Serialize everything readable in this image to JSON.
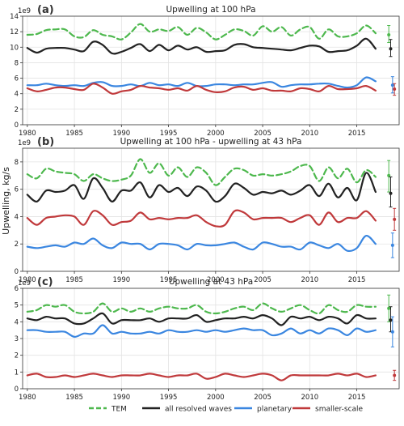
{
  "figure": {
    "ylabel": "Upwelling, kg/s",
    "legend_position": "bottom",
    "legend": [
      {
        "label": "TEM",
        "color": "#4db84d",
        "dash": true
      },
      {
        "label": "all resolved waves",
        "color": "#222222",
        "dash": false
      },
      {
        "label": "planetary",
        "color": "#3a86e0",
        "dash": false
      },
      {
        "label": "smaller-scale",
        "color": "#c0393b",
        "dash": false
      }
    ]
  },
  "chart_data": [
    {
      "type": "line",
      "panel_label": "(a)",
      "title": "Upwelling at 100 hPa",
      "scale_label": "1e9",
      "xlim": [
        1979.5,
        2019.5
      ],
      "ylim": [
        0,
        14
      ],
      "yticks": [
        0,
        2,
        4,
        6,
        8,
        10,
        12,
        14
      ],
      "xticks": [
        1980,
        1985,
        1990,
        1995,
        2000,
        2005,
        2010,
        2015
      ],
      "grid": true,
      "x": [
        1980,
        1981,
        1982,
        1983,
        1984,
        1985,
        1986,
        1987,
        1988,
        1989,
        1990,
        1991,
        1992,
        1993,
        1994,
        1995,
        1996,
        1997,
        1998,
        1999,
        2000,
        2001,
        2002,
        2003,
        2004,
        2005,
        2006,
        2007,
        2008,
        2009,
        2010,
        2011,
        2012,
        2013,
        2014,
        2015,
        2016,
        2017
      ],
      "series": [
        {
          "name": "TEM",
          "color": "#4db84d",
          "dash": true,
          "values": [
            11.6,
            11.7,
            12.2,
            12.3,
            12.3,
            11.4,
            11.3,
            12.2,
            11.6,
            11.4,
            11.0,
            11.9,
            13.0,
            12.0,
            12.3,
            12.1,
            12.6,
            11.6,
            12.5,
            11.9,
            11.0,
            11.6,
            12.3,
            12.1,
            11.5,
            12.7,
            12.0,
            12.6,
            11.5,
            12.3,
            12.6,
            11.1,
            12.3,
            11.4,
            11.4,
            11.8,
            12.8,
            11.8
          ],
          "errorbar": {
            "x": 2018.4,
            "value": 11.6,
            "low": 10.6,
            "high": 12.8
          }
        },
        {
          "name": "all resolved waves",
          "color": "#222222",
          "dash": false,
          "values": [
            9.9,
            9.3,
            9.8,
            9.9,
            9.9,
            9.7,
            9.5,
            10.7,
            10.3,
            9.2,
            9.4,
            9.9,
            10.4,
            9.5,
            10.3,
            9.6,
            10.2,
            9.7,
            10.0,
            9.4,
            9.5,
            9.6,
            10.3,
            10.4,
            10.0,
            9.9,
            9.8,
            9.7,
            9.6,
            9.9,
            10.2,
            10.1,
            9.4,
            9.5,
            9.6,
            10.2,
            11.1,
            9.8
          ],
          "errorbar": {
            "x": 2018.6,
            "value": 9.8,
            "low": 8.8,
            "high": 11.0
          }
        },
        {
          "name": "planetary",
          "color": "#3a86e0",
          "dash": false,
          "values": [
            5.1,
            5.1,
            5.3,
            5.1,
            5.0,
            5.1,
            5.0,
            5.4,
            5.5,
            5.0,
            5.0,
            5.2,
            5.0,
            5.4,
            5.1,
            5.2,
            5.0,
            5.4,
            5.0,
            5.0,
            5.2,
            5.2,
            5.1,
            5.2,
            5.2,
            5.4,
            5.5,
            4.9,
            5.1,
            5.2,
            5.2,
            5.3,
            5.3,
            5.0,
            4.8,
            5.1,
            6.1,
            5.6
          ],
          "errorbar": {
            "x": 2018.8,
            "value": 5.1,
            "low": 4.1,
            "high": 6.2
          }
        },
        {
          "name": "smaller-scale",
          "color": "#c0393b",
          "dash": false,
          "values": [
            4.7,
            4.3,
            4.5,
            4.8,
            4.8,
            4.6,
            4.5,
            5.3,
            4.8,
            4.0,
            4.3,
            4.5,
            5.0,
            4.8,
            4.7,
            4.5,
            4.7,
            4.4,
            5.0,
            4.5,
            4.2,
            4.3,
            4.8,
            4.9,
            4.5,
            4.7,
            4.4,
            4.4,
            4.3,
            4.7,
            4.6,
            4.3,
            5.0,
            4.6,
            4.6,
            4.7,
            5.0,
            4.4
          ],
          "errorbar": {
            "x": 2019.0,
            "value": 4.6,
            "low": 3.8,
            "high": 5.3
          }
        }
      ]
    },
    {
      "type": "line",
      "panel_label": "(b)",
      "title": "Upwelling at 100 hPa - upwelling at 43 hPa",
      "scale_label": "1e9",
      "xlim": [
        1979.5,
        2019.5
      ],
      "ylim": [
        0,
        9
      ],
      "yticks": [
        0,
        2,
        4,
        6,
        8
      ],
      "xticks": [
        1980,
        1985,
        1990,
        1995,
        2000,
        2005,
        2010,
        2015
      ],
      "grid": true,
      "x": [
        1980,
        1981,
        1982,
        1983,
        1984,
        1985,
        1986,
        1987,
        1988,
        1989,
        1990,
        1991,
        1992,
        1993,
        1994,
        1995,
        1996,
        1997,
        1998,
        1999,
        2000,
        2001,
        2002,
        2003,
        2004,
        2005,
        2006,
        2007,
        2008,
        2009,
        2010,
        2011,
        2012,
        2013,
        2014,
        2015,
        2016,
        2017
      ],
      "series": [
        {
          "name": "TEM",
          "color": "#4db84d",
          "dash": true,
          "values": [
            7.1,
            6.8,
            7.5,
            7.3,
            7.2,
            7.1,
            6.6,
            7.1,
            6.8,
            6.6,
            6.7,
            7.0,
            8.2,
            7.2,
            7.9,
            7.0,
            7.6,
            6.9,
            7.6,
            7.2,
            6.3,
            6.9,
            7.5,
            7.4,
            7.0,
            7.1,
            7.0,
            7.1,
            7.3,
            7.7,
            7.7,
            6.6,
            7.6,
            6.8,
            7.5,
            6.5,
            7.4,
            6.9
          ],
          "errorbar": {
            "x": 2018.4,
            "value": 7.0,
            "low": 5.8,
            "high": 8.1
          }
        },
        {
          "name": "all resolved waves",
          "color": "#222222",
          "dash": false,
          "values": [
            5.6,
            5.1,
            5.9,
            5.8,
            5.9,
            6.3,
            5.3,
            6.8,
            6.1,
            5.1,
            5.9,
            5.9,
            6.5,
            5.4,
            6.3,
            5.8,
            6.1,
            5.5,
            6.2,
            5.9,
            5.1,
            5.5,
            6.4,
            6.1,
            5.6,
            5.8,
            5.7,
            5.9,
            5.6,
            5.9,
            6.3,
            5.5,
            6.4,
            5.4,
            6.1,
            5.2,
            7.2,
            5.8
          ],
          "errorbar": {
            "x": 2018.6,
            "value": 5.7,
            "low": 4.7,
            "high": 6.9
          }
        },
        {
          "name": "planetary",
          "color": "#3a86e0",
          "dash": false,
          "values": [
            1.8,
            1.7,
            1.8,
            1.9,
            1.8,
            2.1,
            2.0,
            2.4,
            1.9,
            1.7,
            2.1,
            2.0,
            2.0,
            1.6,
            2.0,
            2.0,
            1.9,
            1.6,
            2.0,
            1.9,
            1.9,
            2.0,
            2.1,
            1.8,
            1.6,
            2.1,
            2.0,
            1.8,
            1.8,
            1.6,
            2.1,
            1.9,
            1.7,
            2.0,
            1.5,
            1.7,
            2.6,
            2.0
          ],
          "errorbar": {
            "x": 2018.8,
            "value": 1.9,
            "low": 1.0,
            "high": 2.8
          }
        },
        {
          "name": "smaller-scale",
          "color": "#c0393b",
          "dash": false,
          "values": [
            3.9,
            3.4,
            3.9,
            4.0,
            4.1,
            4.0,
            3.4,
            4.4,
            4.1,
            3.4,
            3.6,
            3.7,
            4.3,
            3.8,
            3.9,
            3.8,
            3.9,
            3.9,
            4.1,
            3.6,
            3.3,
            3.4,
            4.4,
            4.3,
            3.8,
            3.9,
            3.9,
            3.9,
            3.6,
            3.9,
            4.1,
            3.4,
            4.3,
            3.6,
            3.9,
            3.9,
            4.4,
            3.7
          ],
          "errorbar": {
            "x": 2019.0,
            "value": 3.8,
            "low": 3.0,
            "high": 4.6
          }
        }
      ]
    },
    {
      "type": "line",
      "panel_label": "(c)",
      "title": "Upwelling at 43 hPa",
      "scale_label": "1e9",
      "xlim": [
        1979.5,
        2019.5
      ],
      "ylim": [
        0,
        6
      ],
      "yticks": [
        0,
        1,
        2,
        3,
        4,
        5,
        6
      ],
      "xticks": [
        1980,
        1985,
        1990,
        1995,
        2000,
        2005,
        2010,
        2015
      ],
      "grid": true,
      "x": [
        1980,
        1981,
        1982,
        1983,
        1984,
        1985,
        1986,
        1987,
        1988,
        1989,
        1990,
        1991,
        1992,
        1993,
        1994,
        1995,
        1996,
        1997,
        1998,
        1999,
        2000,
        2001,
        2002,
        2003,
        2004,
        2005,
        2006,
        2007,
        2008,
        2009,
        2010,
        2011,
        2012,
        2013,
        2014,
        2015,
        2016,
        2017
      ],
      "series": [
        {
          "name": "TEM",
          "color": "#4db84d",
          "dash": true,
          "values": [
            4.6,
            4.7,
            5.0,
            4.9,
            5.0,
            4.6,
            4.5,
            4.6,
            5.1,
            4.6,
            4.8,
            4.6,
            4.8,
            4.6,
            4.8,
            4.9,
            4.8,
            4.8,
            5.0,
            4.6,
            4.5,
            4.6,
            4.8,
            4.9,
            4.7,
            5.1,
            4.8,
            4.6,
            4.8,
            5.0,
            4.7,
            4.5,
            5.0,
            4.7,
            4.6,
            5.0,
            4.9,
            4.9
          ],
          "errorbar": {
            "x": 2018.4,
            "value": 4.8,
            "low": 4.0,
            "high": 5.6
          }
        },
        {
          "name": "all resolved waves",
          "color": "#222222",
          "dash": false,
          "values": [
            4.2,
            4.1,
            4.3,
            4.2,
            4.2,
            3.9,
            3.9,
            4.2,
            4.5,
            3.9,
            4.1,
            4.1,
            4.1,
            4.2,
            4.0,
            4.2,
            4.2,
            4.2,
            4.4,
            4.0,
            4.1,
            4.2,
            4.2,
            4.3,
            4.2,
            4.4,
            4.2,
            3.8,
            4.3,
            4.2,
            4.3,
            4.1,
            4.3,
            4.2,
            3.9,
            4.4,
            4.2,
            4.2
          ],
          "errorbar": {
            "x": 2018.6,
            "value": 4.1,
            "low": 3.4,
            "high": 4.9
          }
        },
        {
          "name": "planetary",
          "color": "#3a86e0",
          "dash": false,
          "values": [
            3.5,
            3.5,
            3.4,
            3.4,
            3.4,
            3.1,
            3.3,
            3.3,
            3.8,
            3.3,
            3.4,
            3.3,
            3.3,
            3.4,
            3.3,
            3.5,
            3.4,
            3.4,
            3.5,
            3.4,
            3.5,
            3.4,
            3.5,
            3.6,
            3.5,
            3.5,
            3.2,
            3.3,
            3.6,
            3.3,
            3.5,
            3.3,
            3.6,
            3.5,
            3.2,
            3.6,
            3.4,
            3.5
          ],
          "errorbar": {
            "x": 2018.8,
            "value": 3.4,
            "low": 2.5,
            "high": 4.3
          }
        },
        {
          "name": "smaller-scale",
          "color": "#c0393b",
          "dash": false,
          "values": [
            0.8,
            0.9,
            0.7,
            0.7,
            0.8,
            0.7,
            0.8,
            0.9,
            0.8,
            0.7,
            0.8,
            0.8,
            0.8,
            0.9,
            0.8,
            0.7,
            0.8,
            0.8,
            0.9,
            0.6,
            0.7,
            0.9,
            0.8,
            0.7,
            0.8,
            0.9,
            0.8,
            0.5,
            0.8,
            0.8,
            0.8,
            0.8,
            0.8,
            0.9,
            0.8,
            0.9,
            0.7,
            0.8
          ],
          "errorbar": {
            "x": 2019.0,
            "value": 0.8,
            "low": 0.5,
            "high": 1.1
          }
        }
      ]
    }
  ]
}
